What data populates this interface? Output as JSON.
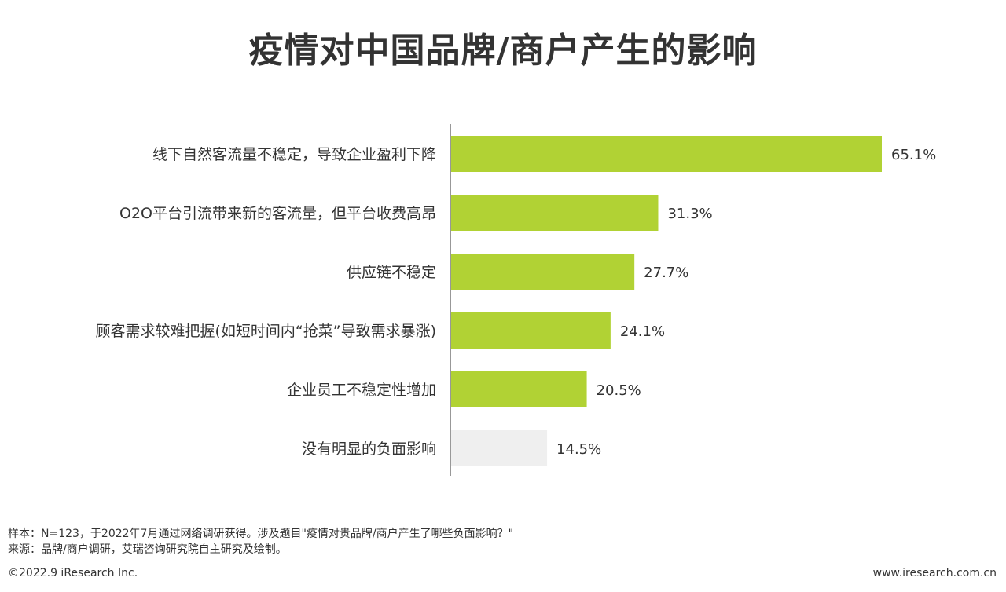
{
  "title": "疫情对中国品牌/商户产生的影响",
  "chart_data": {
    "type": "bar",
    "orientation": "horizontal",
    "title": "疫情对中国品牌/商户产生的影响",
    "categories": [
      "线下自然客流量不稳定，导致企业盈利下降",
      "O2O平台引流带来新的客流量，但平台收费高昂",
      "供应链不稳定",
      "顾客需求较难把握(如短时间内“抢菜”导致需求暴涨)",
      "企业员工不稳定性增加",
      "没有明显的负面影响"
    ],
    "values": [
      65.1,
      31.3,
      27.7,
      24.1,
      20.5,
      14.5
    ],
    "value_labels": [
      "65.1%",
      "31.3%",
      "27.7%",
      "24.1%",
      "20.5%",
      "14.5%"
    ],
    "unit": "%",
    "xlim": [
      0,
      100
    ],
    "grid": false,
    "legend": "none",
    "colors": {
      "primary": "#b1d234",
      "neutral": "#efefef"
    },
    "highlight_neutral_index": 5
  },
  "notes": {
    "sample": "样本：N=123，于2022年7月通过网络调研获得。涉及题目\"疫情对贵品牌/商户产生了哪些负面影响？\"",
    "source": "来源：品牌/商户调研，艾瑞咨询研究院自主研究及绘制。"
  },
  "footer": {
    "copyright": "©2022.9 iResearch Inc.",
    "website": "www.iresearch.com.cn"
  }
}
